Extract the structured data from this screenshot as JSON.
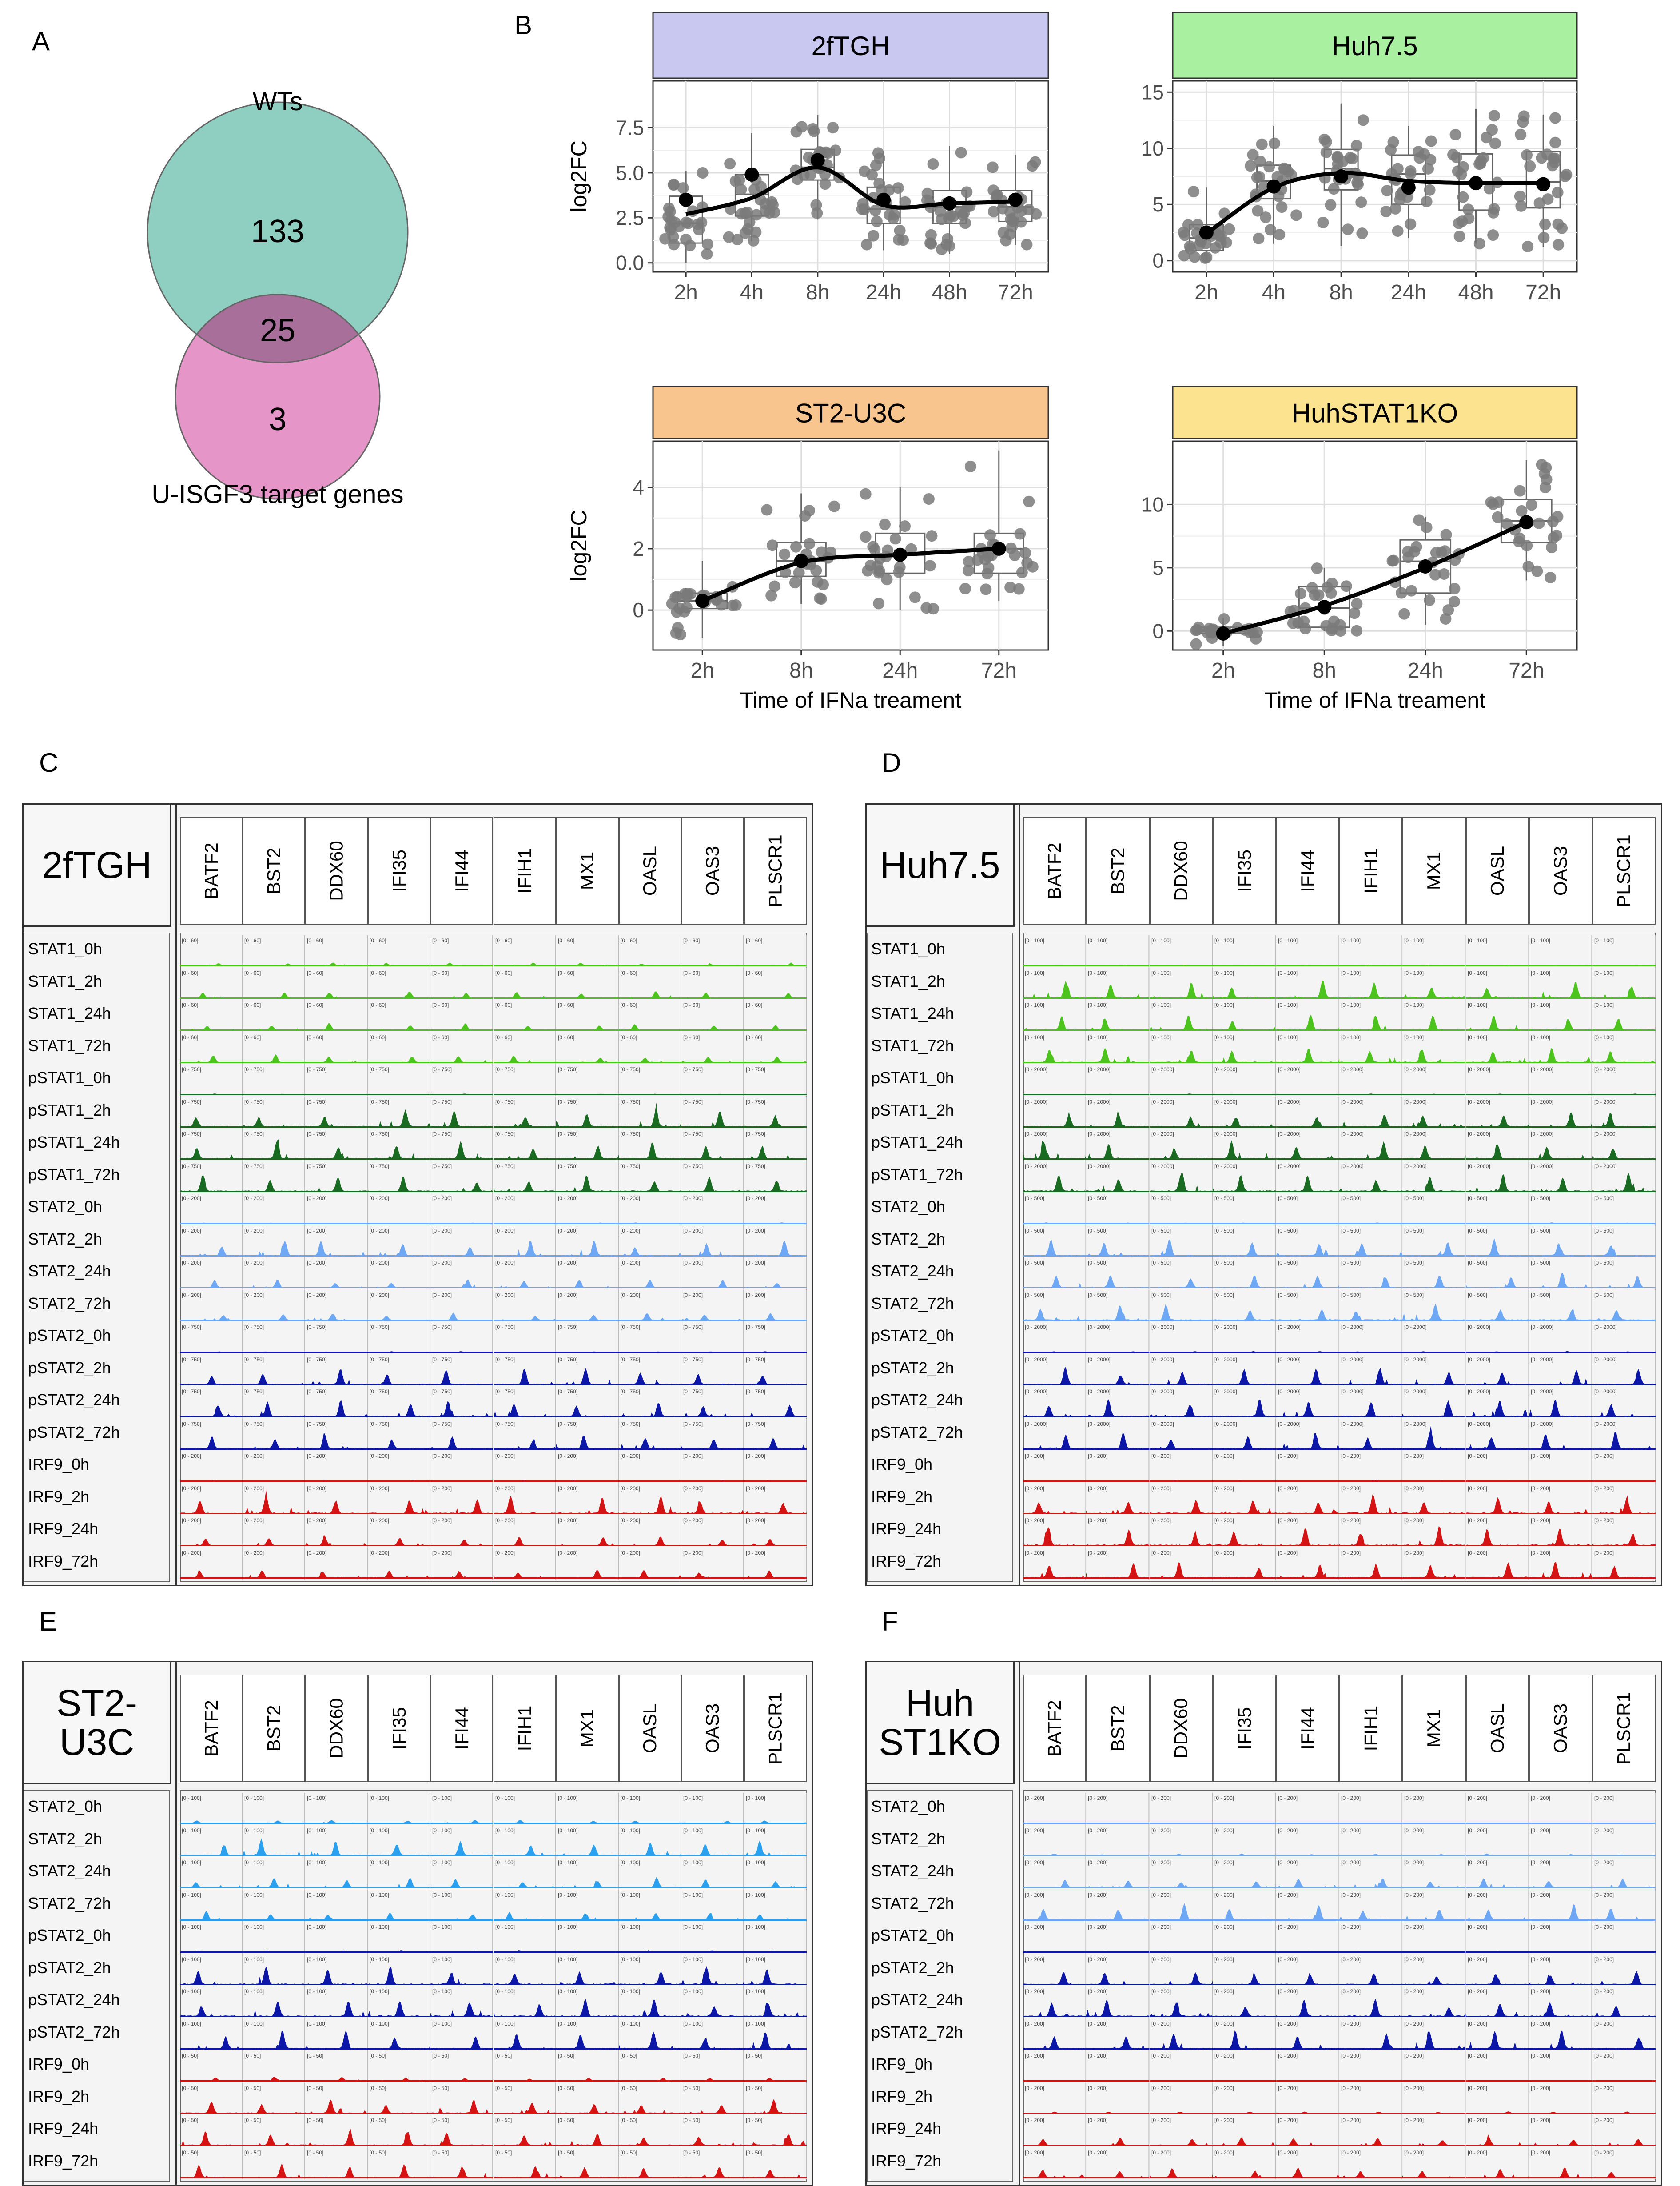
{
  "panel_letters": {
    "A": "A",
    "B": "B",
    "C": "C",
    "D": "D",
    "E": "E",
    "F": "F"
  },
  "colors": {
    "venn_wt": "#8fcfc2",
    "venn_usigf3": "#e695c8",
    "venn_overlap": "#a86f9a",
    "strip_2ftgh": "#c8c8f0",
    "strip_huh75": "#a9f0a0",
    "strip_st2u3c": "#f9c58f",
    "strip_huhstat1ko": "#fbe38f",
    "stat1": "#4dc31d",
    "pstat1": "#1a6b22",
    "stat2": "#6ea8f5",
    "stat2_light": "#2ba0ee",
    "pstat2": "#0c17a8",
    "irf9": "#d41414"
  },
  "venn": {
    "title": "WTs",
    "label_bottom": "U-ISGF3 target genes",
    "wt_only": "133",
    "overlap": "25",
    "usigf3_only": "3"
  },
  "chart_data": [
    {
      "type": "box",
      "panel": "2fTGH",
      "ylabel": "log2FC",
      "xlabel": "",
      "categories": [
        "2h",
        "4h",
        "8h",
        "24h",
        "48h",
        "72h"
      ],
      "yticks": [
        0.0,
        2.5,
        5.0,
        7.5
      ],
      "ytick_labels": [
        "0.0",
        "2.5",
        "5.0",
        "7.5"
      ],
      "ylim": [
        -0.5,
        10.1
      ],
      "box": [
        [
          1.1,
          2.2,
          3.7,
          0.0,
          5.1
        ],
        [
          2.6,
          3.8,
          4.9,
          1.2,
          7.2
        ],
        [
          4.6,
          5.3,
          6.3,
          2.4,
          8.2
        ],
        [
          2.2,
          3.0,
          4.2,
          0.7,
          6.2
        ],
        [
          2.2,
          3.1,
          4.0,
          0.5,
          6.5
        ],
        [
          2.3,
          3.1,
          4.0,
          1.0,
          6.0
        ]
      ],
      "means": [
        3.5,
        4.9,
        5.7,
        3.5,
        3.3,
        3.5
      ],
      "smooth": [
        2.7,
        3.6,
        5.3,
        3.2,
        3.3,
        3.4
      ]
    },
    {
      "type": "box",
      "panel": "Huh7.5",
      "ylabel": "",
      "xlabel": "",
      "categories": [
        "2h",
        "4h",
        "8h",
        "24h",
        "48h",
        "72h"
      ],
      "yticks": [
        0,
        5,
        10,
        15
      ],
      "ytick_labels": [
        "0",
        "5",
        "10",
        "15"
      ],
      "ylim": [
        -1,
        16
      ],
      "box": [
        [
          0.9,
          2.0,
          3.2,
          0.0,
          6.5
        ],
        [
          5.5,
          7.1,
          8.5,
          1.5,
          12.0
        ],
        [
          6.3,
          8.2,
          9.9,
          1.3,
          14.0
        ],
        [
          5.0,
          7.7,
          9.4,
          2.0,
          12.0
        ],
        [
          4.5,
          6.9,
          9.5,
          1.5,
          13.5
        ],
        [
          4.7,
          7.0,
          9.7,
          1.2,
          13.0
        ]
      ],
      "means": [
        2.5,
        6.6,
        7.5,
        6.5,
        6.9,
        6.8
      ],
      "smooth": [
        2.4,
        6.5,
        7.8,
        7.1,
        6.9,
        6.9
      ]
    },
    {
      "type": "box",
      "panel": "ST2-U3C",
      "ylabel": "log2FC",
      "xlabel": "Time of IFNa treament",
      "categories": [
        "2h",
        "8h",
        "24h",
        "72h"
      ],
      "yticks": [
        0,
        2,
        4
      ],
      "ytick_labels": [
        "0",
        "2",
        "4"
      ],
      "ylim": [
        -1.3,
        5.5
      ],
      "box": [
        [
          0.05,
          0.3,
          0.55,
          -0.9,
          1.6
        ],
        [
          1.1,
          1.6,
          2.2,
          0.2,
          3.8
        ],
        [
          1.2,
          1.8,
          2.5,
          0.0,
          4.0
        ],
        [
          1.2,
          2.0,
          2.5,
          0.3,
          5.2
        ]
      ],
      "means": [
        0.3,
        1.6,
        1.8,
        2.0
      ],
      "smooth": [
        0.3,
        1.55,
        1.8,
        2.0
      ]
    },
    {
      "type": "box",
      "panel": "HuhSTAT1KO",
      "ylabel": "",
      "xlabel": "Time of IFNa treament",
      "categories": [
        "2h",
        "8h",
        "24h",
        "72h"
      ],
      "yticks": [
        0,
        5,
        10
      ],
      "ytick_labels": [
        "0",
        "5",
        "10"
      ],
      "ylim": [
        -1.5,
        15
      ],
      "box": [
        [
          -0.2,
          0.0,
          0.3,
          -1.2,
          1.0
        ],
        [
          0.3,
          1.8,
          3.5,
          0.0,
          5.0
        ],
        [
          3.0,
          5.5,
          7.2,
          0.5,
          9.0
        ],
        [
          7.0,
          8.7,
          10.4,
          4.0,
          13.5
        ]
      ],
      "means": [
        -0.2,
        1.9,
        5.1,
        8.6
      ],
      "smooth": [
        -0.2,
        2.0,
        5.0,
        8.6
      ]
    }
  ],
  "track_panels": [
    {
      "letter": "C",
      "title": "2fTGH",
      "genes": [
        "BATF2",
        "BST2",
        "DDX60",
        "IFI35",
        "IFI44",
        "IFIH1",
        "MX1",
        "OASL",
        "OAS3",
        "PLSCR1"
      ],
      "rows": [
        "STAT1_0h",
        "STAT1_2h",
        "STAT1_24h",
        "STAT1_72h",
        "pSTAT1_0h",
        "pSTAT1_2h",
        "pSTAT1_24h",
        "pSTAT1_72h",
        "STAT2_0h",
        "STAT2_2h",
        "STAT2_24h",
        "STAT2_72h",
        "pSTAT2_0h",
        "pSTAT2_2h",
        "pSTAT2_24h",
        "pSTAT2_72h",
        "IRF9_0h",
        "IRF9_2h",
        "IRF9_24h",
        "IRF9_72h"
      ],
      "row_colors": [
        "#4dc31d",
        "#4dc31d",
        "#4dc31d",
        "#4dc31d",
        "#1a6b22",
        "#1a6b22",
        "#1a6b22",
        "#1a6b22",
        "#6ea8f5",
        "#6ea8f5",
        "#6ea8f5",
        "#6ea8f5",
        "#0c17a8",
        "#0c17a8",
        "#0c17a8",
        "#0c17a8",
        "#d41414",
        "#d41414",
        "#d41414",
        "#d41414"
      ],
      "row_strength": [
        0.15,
        0.35,
        0.35,
        0.4,
        0.05,
        0.9,
        0.9,
        0.85,
        0.05,
        0.8,
        0.4,
        0.35,
        0.05,
        0.85,
        0.8,
        0.8,
        0.05,
        0.9,
        0.45,
        0.4
      ],
      "scale_labels": [
        "[0 - 60]",
        "[0 - 60]",
        "[0 - 60]",
        "[0 - 60]",
        "[0 - 750]",
        "[0 - 750]",
        "[0 - 750]",
        "[0 - 750]",
        "[0 - 200]",
        "[0 - 200]",
        "[0 - 200]",
        "[0 - 200]",
        "[0 - 750]",
        "[0 - 750]",
        "[0 - 750]",
        "[0 - 750]",
        "[0 - 200]",
        "[0 - 200]",
        "[0 - 200]",
        "[0 - 200]"
      ]
    },
    {
      "letter": "D",
      "title": "Huh7.5",
      "genes": [
        "BATF2",
        "BST2",
        "DDX60",
        "IFI35",
        "IFI44",
        "IFIH1",
        "MX1",
        "OASL",
        "OAS3",
        "PLSCR1"
      ],
      "rows": [
        "STAT1_0h",
        "STAT1_2h",
        "STAT1_24h",
        "STAT1_72h",
        "pSTAT1_0h",
        "pSTAT1_2h",
        "pSTAT1_24h",
        "pSTAT1_72h",
        "STAT2_0h",
        "STAT2_2h",
        "STAT2_24h",
        "STAT2_72h",
        "pSTAT2_0h",
        "pSTAT2_2h",
        "pSTAT2_24h",
        "pSTAT2_72h",
        "IRF9_0h",
        "IRF9_2h",
        "IRF9_24h",
        "IRF9_72h"
      ],
      "row_colors": [
        "#4dc31d",
        "#4dc31d",
        "#4dc31d",
        "#4dc31d",
        "#1a6b22",
        "#1a6b22",
        "#1a6b22",
        "#1a6b22",
        "#6ea8f5",
        "#6ea8f5",
        "#6ea8f5",
        "#6ea8f5",
        "#0c17a8",
        "#0c17a8",
        "#0c17a8",
        "#0c17a8",
        "#d41414",
        "#d41414",
        "#d41414",
        "#d41414"
      ],
      "row_strength": [
        0.05,
        0.9,
        0.8,
        0.75,
        0.05,
        0.85,
        0.9,
        0.9,
        0.05,
        0.85,
        0.8,
        0.8,
        0.05,
        0.85,
        0.9,
        0.9,
        0.05,
        0.95,
        0.95,
        0.9
      ],
      "scale_labels": [
        "[0 - 100]",
        "[0 - 100]",
        "[0 - 100]",
        "[0 - 100]",
        "[0 - 2000]",
        "[0 - 2000]",
        "[0 - 2000]",
        "[0 - 2000]",
        "[0 - 500]",
        "[0 - 500]",
        "[0 - 500]",
        "[0 - 500]",
        "[0 - 2000]",
        "[0 - 2000]",
        "[0 - 2000]",
        "[0 - 2000]",
        "[0 - 200]",
        "[0 - 200]",
        "[0 - 200]",
        "[0 - 200]"
      ]
    },
    {
      "letter": "E",
      "title": "ST2-U3C",
      "genes": [
        "BATF2",
        "BST2",
        "DDX60",
        "IFI35",
        "IFI44",
        "IFIH1",
        "MX1",
        "OASL",
        "OAS3",
        "PLSCR1"
      ],
      "rows": [
        "STAT2_0h",
        "STAT2_2h",
        "STAT2_24h",
        "STAT2_72h",
        "pSTAT2_0h",
        "pSTAT2_2h",
        "pSTAT2_24h",
        "pSTAT2_72h",
        "IRF9_0h",
        "IRF9_2h",
        "IRF9_24h",
        "IRF9_72h"
      ],
      "row_colors": [
        "#2ba0ee",
        "#2ba0ee",
        "#2ba0ee",
        "#2ba0ee",
        "#0c17a8",
        "#0c17a8",
        "#0c17a8",
        "#0c17a8",
        "#d41414",
        "#d41414",
        "#d41414",
        "#d41414"
      ],
      "row_strength": [
        0.2,
        0.8,
        0.5,
        0.5,
        0.1,
        0.9,
        0.9,
        0.9,
        0.2,
        0.7,
        0.7,
        0.7
      ],
      "scale_labels": [
        "[0 - 100]",
        "[0 - 100]",
        "[0 - 100]",
        "[0 - 100]",
        "[0 - 100]",
        "[0 - 100]",
        "[0 - 100]",
        "[0 - 100]",
        "[0 - 50]",
        "[0 - 50]",
        "[0 - 50]",
        "[0 - 50]"
      ]
    },
    {
      "letter": "F",
      "title": "Huh ST1KO",
      "title_line1": "Huh",
      "title_line2": "ST1KO",
      "genes": [
        "BATF2",
        "BST2",
        "DDX60",
        "IFI35",
        "IFI44",
        "IFIH1",
        "MX1",
        "OASL",
        "OAS3",
        "PLSCR1"
      ],
      "rows": [
        "STAT2_0h",
        "STAT2_2h",
        "STAT2_24h",
        "STAT2_72h",
        "pSTAT2_0h",
        "pSTAT2_2h",
        "pSTAT2_24h",
        "pSTAT2_72h",
        "IRF9_0h",
        "IRF9_2h",
        "IRF9_24h",
        "IRF9_72h"
      ],
      "row_colors": [
        "#6ea8f5",
        "#6ea8f5",
        "#6ea8f5",
        "#6ea8f5",
        "#0c17a8",
        "#0c17a8",
        "#0c17a8",
        "#0c17a8",
        "#d41414",
        "#d41414",
        "#d41414",
        "#d41414"
      ],
      "row_strength": [
        0.02,
        0.1,
        0.5,
        0.8,
        0.05,
        0.7,
        0.85,
        0.9,
        0.02,
        0.1,
        0.4,
        0.5
      ],
      "scale_labels": [
        "[0 - 200]",
        "[0 - 200]",
        "[0 - 200]",
        "[0 - 200]",
        "[0 - 200]",
        "[0 - 200]",
        "[0 - 200]",
        "[0 - 200]",
        "[0 - 200]",
        "[0 - 200]",
        "[0 - 200]",
        "[0 - 200]"
      ]
    }
  ]
}
